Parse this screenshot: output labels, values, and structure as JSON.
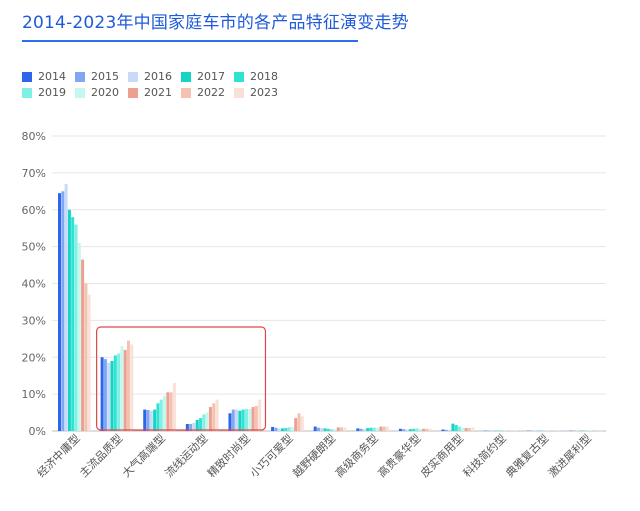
{
  "title": "2014-2023年中国家庭车市的各产品特征演变走势",
  "chart_data": {
    "type": "bar",
    "title": "2014-2023年中国家庭车市的各产品特征演变走势",
    "xlabel": "",
    "ylabel": "",
    "ylim": [
      0,
      80
    ],
    "yticks": [
      "0%",
      "10%",
      "20%",
      "30%",
      "40%",
      "50%",
      "60%",
      "70%",
      "80%"
    ],
    "grid": true,
    "legend_position": "top-left",
    "categories": [
      "经济中庸型",
      "主流品质型",
      "大气高端型",
      "流线运动型",
      "精致时尚型",
      "小巧可爱型",
      "越野硬朗型",
      "高级商务型",
      "高贵豪华型",
      "皮实商用型",
      "科技简约型",
      "典雅复古型",
      "激进犀利型"
    ],
    "highlight_box": {
      "from_category": "主流品质型",
      "to_category": "精致时尚型",
      "color": "#e0474c"
    },
    "series": [
      {
        "name": "2014",
        "color": "#2d66ea",
        "values": [
          64.5,
          20.0,
          5.8,
          1.9,
          4.8,
          1.1,
          1.2,
          0.7,
          0.6,
          0.4,
          0.1,
          0.1,
          0.1
        ]
      },
      {
        "name": "2015",
        "color": "#7ea8f4",
        "values": [
          65.0,
          19.5,
          5.7,
          1.9,
          5.8,
          0.9,
          0.9,
          0.6,
          0.5,
          0.3,
          0.1,
          0.1,
          0.1
        ]
      },
      {
        "name": "2016",
        "color": "#c9d9f7",
        "values": [
          67.0,
          18.5,
          5.5,
          2.2,
          5.8,
          0.7,
          0.8,
          0.5,
          0.4,
          0.3,
          0.1,
          0.1,
          0.1
        ]
      },
      {
        "name": "2017",
        "color": "#16d4c5",
        "values": [
          60.0,
          19.0,
          5.8,
          3.0,
          5.5,
          0.7,
          0.7,
          0.8,
          0.5,
          2.0,
          0.1,
          0.1,
          0.1
        ]
      },
      {
        "name": "2018",
        "color": "#2ee3d4",
        "values": [
          58.0,
          20.5,
          7.5,
          3.5,
          5.8,
          0.8,
          0.6,
          0.9,
          0.6,
          1.6,
          0.1,
          0.1,
          0.1
        ]
      },
      {
        "name": "2019",
        "color": "#7ff0e2",
        "values": [
          56.0,
          21.0,
          8.5,
          4.5,
          6.0,
          1.0,
          0.5,
          0.9,
          0.7,
          1.2,
          0.1,
          0.1,
          0.1
        ]
      },
      {
        "name": "2020",
        "color": "#c5f6ef",
        "values": [
          51.0,
          23.0,
          9.5,
          5.0,
          6.0,
          1.0,
          0.5,
          0.9,
          0.6,
          0.9,
          0.1,
          0.1,
          0.1
        ]
      },
      {
        "name": "2021",
        "color": "#eca08f",
        "values": [
          46.5,
          22.0,
          10.5,
          6.5,
          6.5,
          3.5,
          1.0,
          1.2,
          0.6,
          0.8,
          0.1,
          0.1,
          0.1
        ]
      },
      {
        "name": "2022",
        "color": "#f4c2b0",
        "values": [
          40.0,
          24.5,
          10.5,
          7.5,
          6.8,
          4.8,
          1.0,
          1.2,
          0.6,
          0.8,
          0.1,
          0.1,
          0.1
        ]
      },
      {
        "name": "2023",
        "color": "#fae1d8",
        "values": [
          37.0,
          23.5,
          13.0,
          8.5,
          8.5,
          4.0,
          0.9,
          1.2,
          0.6,
          0.9,
          0.1,
          0.1,
          0.1
        ]
      }
    ]
  }
}
